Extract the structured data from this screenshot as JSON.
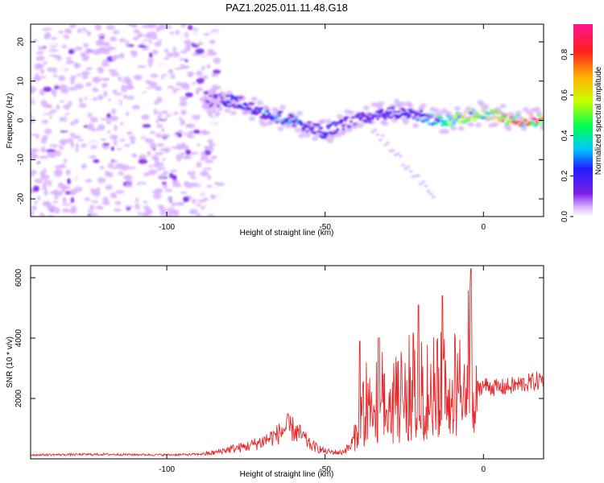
{
  "title": "PAZ1.2025.011.11.48.G18",
  "chart_data": [
    {
      "type": "heatmap",
      "xlabel": "Height of straight line (km)",
      "ylabel": "Frequency (Hz)",
      "colorbar_label": "Normalized spectral amplitude",
      "xlim": [
        -143,
        19
      ],
      "ylim": [
        -24.5,
        24.5
      ],
      "x_ticks": [
        -100,
        -50,
        0
      ],
      "y_ticks": [
        -20,
        -10,
        0,
        10,
        20
      ],
      "x_tick_labels": [
        "-100",
        "-50",
        "0"
      ],
      "y_tick_labels": [
        "-20",
        "-10",
        "0",
        "10",
        "20"
      ],
      "colorbar_range": [
        0,
        0.95
      ],
      "colorbar_ticks": [
        0.0,
        0.2,
        0.4,
        0.6,
        0.8
      ],
      "colorbar_tick_labels": [
        "0.0",
        "0.2",
        "0.4",
        "0.6",
        "0.8"
      ],
      "colormap": [
        "#ffffff",
        "#d9b3ff",
        "#7a1fe6",
        "#1f1fff",
        "#00c8ff",
        "#00ff50",
        "#c8ff00",
        "#ffb400",
        "#ff1f1f",
        "#ff1493"
      ],
      "ridge": {
        "x": [
          -143,
          -120,
          -100,
          -90,
          -85,
          -80,
          -75,
          -70,
          -65,
          -60,
          -55,
          -50,
          -45,
          -40,
          -35,
          -30,
          -25,
          -20,
          -15,
          -10,
          -5,
          0,
          5,
          10,
          15,
          19
        ],
        "frequency": [
          6,
          5,
          4,
          4,
          5,
          5,
          4,
          2,
          1,
          0,
          -2,
          -3,
          -1,
          0,
          1,
          2,
          2,
          1,
          0,
          0,
          1,
          2,
          1,
          0,
          0,
          0
        ],
        "amplitude": [
          0.15,
          0.18,
          0.12,
          0.1,
          0.25,
          0.35,
          0.3,
          0.35,
          0.4,
          0.4,
          0.3,
          0.35,
          0.3,
          0.25,
          0.3,
          0.3,
          0.3,
          0.4,
          0.5,
          0.6,
          0.7,
          0.65,
          0.8,
          0.9,
          0.85,
          0.8
        ]
      }
    },
    {
      "type": "line",
      "xlabel": "Height of straight line (km)",
      "ylabel": "SNR (10 * v/v)",
      "xlim": [
        -143,
        19
      ],
      "ylim": [
        0,
        6400
      ],
      "x_ticks": [
        -100,
        -50,
        0
      ],
      "y_ticks": [
        2000,
        4000,
        6000
      ],
      "x_tick_labels": [
        "-100",
        "-50",
        "0"
      ],
      "y_tick_labels": [
        "2000",
        "4000",
        "6000"
      ],
      "color": "#e8292b",
      "envelope": {
        "x": [
          -143,
          -120,
          -100,
          -90,
          -85,
          -80,
          -75,
          -70,
          -65,
          -62,
          -60,
          -57,
          -55,
          -50,
          -45,
          -42,
          -40,
          -38,
          -35,
          -32,
          -30,
          -27,
          -25,
          -22,
          -20,
          -17,
          -15,
          -12,
          -10,
          -7,
          -5,
          -4,
          -3,
          -2,
          0,
          5,
          10,
          15,
          19
        ],
        "snr": [
          150,
          170,
          150,
          170,
          250,
          400,
          500,
          700,
          1000,
          1300,
          1200,
          900,
          600,
          300,
          250,
          500,
          1200,
          2500,
          3000,
          3200,
          2800,
          3000,
          3200,
          3500,
          3200,
          3300,
          3600,
          3400,
          3700,
          4200,
          4500,
          5000,
          3200,
          2500,
          2600,
          2500,
          2600,
          2700,
          2800
        ]
      },
      "peaks": [
        {
          "x": -20.5,
          "snr": 5100
        },
        {
          "x": -13,
          "snr": 5400
        },
        {
          "x": -4,
          "snr": 6300
        },
        {
          "x": -33,
          "snr": 4000
        },
        {
          "x": -39,
          "snr": 3900
        }
      ]
    }
  ]
}
